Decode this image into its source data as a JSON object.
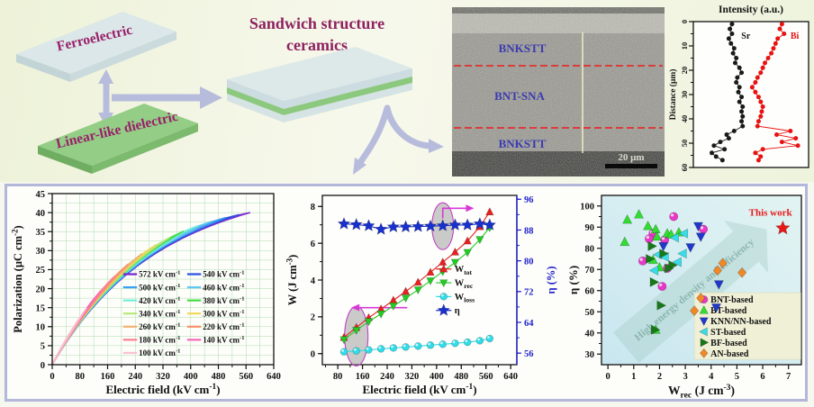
{
  "schematic": {
    "plate_top_label": "Ferroelectric",
    "plate_bottom_label": "Linear-like dielectric",
    "title_line1": "Sandwich structure",
    "title_line2": "ceramics",
    "text_color": "#99206a",
    "plate_top_color": "#dbe7e8",
    "plate_bottom_color": "#94cd86",
    "arrow_color": "#b7bcdc"
  },
  "sem": {
    "layers": [
      "BNKSTT",
      "BNT-SNA",
      "BNKSTT"
    ],
    "scale_bar_label": "20 μm",
    "label_color": "#3b3bb0",
    "boundary_color": "#e03030"
  },
  "chart_data": [
    {
      "id": "eds-line-scan",
      "type": "line",
      "title": "Intensity (a.u.)",
      "ylabel": "Distance (μm)",
      "ylim": [
        0,
        60
      ],
      "yticks": [
        0,
        10,
        20,
        30,
        40,
        50,
        60
      ],
      "legend_position": "inside-top",
      "series": [
        {
          "name": "Sr",
          "color": "#1a1a1a",
          "label_pos": [
            0.46,
            7
          ],
          "points": [
            [
              0.33,
              1
            ],
            [
              0.31,
              3
            ],
            [
              0.33,
              5
            ],
            [
              0.3,
              7
            ],
            [
              0.32,
              9
            ],
            [
              0.35,
              11
            ],
            [
              0.34,
              13
            ],
            [
              0.37,
              15
            ],
            [
              0.36,
              17
            ],
            [
              0.4,
              19
            ],
            [
              0.42,
              21
            ],
            [
              0.38,
              23
            ],
            [
              0.37,
              25
            ],
            [
              0.4,
              27
            ],
            [
              0.39,
              29
            ],
            [
              0.42,
              31
            ],
            [
              0.4,
              33
            ],
            [
              0.43,
              35
            ],
            [
              0.42,
              37
            ],
            [
              0.43,
              39
            ],
            [
              0.42,
              41
            ],
            [
              0.43,
              43
            ],
            [
              0.35,
              45
            ],
            [
              0.28,
              46.5
            ],
            [
              0.3,
              48
            ],
            [
              0.22,
              49.5
            ],
            [
              0.16,
              51
            ],
            [
              0.26,
              52.5
            ],
            [
              0.14,
              54
            ],
            [
              0.18,
              55.5
            ],
            [
              0.24,
              57
            ]
          ]
        },
        {
          "name": "Bi",
          "color": "#e81212",
          "label_pos": [
            0.92,
            7
          ],
          "points": [
            [
              0.8,
              1
            ],
            [
              0.78,
              3
            ],
            [
              0.82,
              5
            ],
            [
              0.76,
              7
            ],
            [
              0.74,
              9
            ],
            [
              0.72,
              11
            ],
            [
              0.7,
              13
            ],
            [
              0.67,
              15
            ],
            [
              0.64,
              17
            ],
            [
              0.62,
              19
            ],
            [
              0.6,
              21
            ],
            [
              0.57,
              23
            ],
            [
              0.55,
              25
            ],
            [
              0.52,
              27
            ],
            [
              0.55,
              29
            ],
            [
              0.58,
              31
            ],
            [
              0.6,
              33
            ],
            [
              0.62,
              35
            ],
            [
              0.61,
              37
            ],
            [
              0.6,
              39
            ],
            [
              0.58,
              41
            ],
            [
              0.57,
              43
            ],
            [
              0.88,
              45
            ],
            [
              0.75,
              46.5
            ],
            [
              0.93,
              48
            ],
            [
              0.8,
              49.5
            ],
            [
              0.95,
              51
            ],
            [
              0.62,
              52.5
            ],
            [
              0.55,
              54
            ],
            [
              0.6,
              55.5
            ],
            [
              0.58,
              57
            ]
          ]
        }
      ]
    },
    {
      "id": "pe-loops",
      "type": "line",
      "xlabel": "Electric field (kV cm⁻¹)",
      "ylabel": "Polarization (μC cm⁻²)",
      "xlim": [
        0,
        640
      ],
      "ylim": [
        0,
        45
      ],
      "xtick_step": 80,
      "ytick_step": 5,
      "grid": true,
      "grid_color": "#9fd6a0",
      "model": {
        "psat": 45,
        "e0": 260,
        "pmax_at_572": 39.9
      },
      "envelope": [
        [
          0,
          0
        ],
        [
          80,
          11.8
        ],
        [
          160,
          20.8
        ],
        [
          240,
          27.3
        ],
        [
          320,
          32.1
        ],
        [
          400,
          35.6
        ],
        [
          480,
          38.1
        ],
        [
          560,
          39.8
        ],
        [
          572,
          39.9
        ]
      ],
      "fields": [
        572,
        540,
        500,
        460,
        420,
        380,
        340,
        300,
        260,
        220,
        180,
        140,
        100
      ],
      "colors": [
        "#7722cc",
        "#2850e0",
        "#38a0f0",
        "#60c8f0",
        "#70eed8",
        "#44dd44",
        "#b8e878",
        "#f0d858",
        "#f4b070",
        "#f89068",
        "#fa8090",
        "#f868b8",
        "#fbc0d0"
      ],
      "legend_labels": [
        "572 kV cm⁻¹",
        "540 kV cm⁻¹",
        "500 kV cm⁻¹",
        "460 kV cm⁻¹",
        "420 kV cm⁻¹",
        "380 kV cm⁻¹",
        "340 kV cm⁻¹",
        "300 kV cm⁻¹",
        "260 kV cm⁻¹",
        "220 kV cm⁻¹",
        "180 kV cm⁻¹",
        "140 kV cm⁻¹",
        "100 kV cm⁻¹"
      ]
    },
    {
      "id": "energy-storage-vs-field",
      "type": "line-scatter",
      "xlabel": "Electric field (kV cm⁻¹)",
      "ylabel_left": "W (J cm⁻³)",
      "ylabel_right": "η (%)",
      "xlim": [
        30,
        660
      ],
      "xticks": [
        80,
        160,
        240,
        320,
        400,
        480,
        560,
        640
      ],
      "ylim_left": [
        -0.6,
        8.6
      ],
      "yticks_left": [
        0,
        2,
        4,
        6,
        8
      ],
      "ylim_right": [
        53,
        97
      ],
      "yticks_right": [
        56,
        64,
        72,
        80,
        88,
        96
      ],
      "right_axis_color": "#2222cc",
      "x": [
        100,
        140,
        180,
        220,
        260,
        300,
        340,
        380,
        420,
        460,
        500,
        540,
        572
      ],
      "series": [
        {
          "name": "W_tot",
          "marker": "triangle-up",
          "color": "#e82020",
          "axis": "left",
          "values": [
            0.88,
            1.42,
            1.95,
            2.42,
            2.9,
            3.38,
            3.88,
            4.42,
            4.97,
            5.52,
            6.12,
            6.9,
            7.7
          ]
        },
        {
          "name": "W_rec",
          "marker": "triangle-down",
          "color": "#22cc22",
          "axis": "left",
          "values": [
            0.76,
            1.27,
            1.74,
            2.16,
            2.59,
            3.02,
            3.47,
            3.96,
            4.46,
            4.96,
            5.5,
            6.2,
            6.85
          ]
        },
        {
          "name": "W_loss",
          "marker": "circle",
          "color": "#30dce8",
          "axis": "left",
          "values": [
            0.1,
            0.15,
            0.2,
            0.26,
            0.31,
            0.36,
            0.41,
            0.46,
            0.51,
            0.56,
            0.62,
            0.7,
            0.82
          ]
        },
        {
          "name": "η",
          "marker": "star",
          "color": "#1830cc",
          "axis": "right",
          "values": [
            89.6,
            89.4,
            89.1,
            88.2,
            88.8,
            88.8,
            88.9,
            89.0,
            89.1,
            89.3,
            89.3,
            89.6,
            89.3
          ]
        }
      ]
    },
    {
      "id": "comparison-scatter",
      "type": "scatter",
      "xlabel": "W_rec (J cm⁻³)",
      "ylabel": "η (%)",
      "xlim": [
        -0.25,
        7.5
      ],
      "xticks": [
        0,
        1,
        2,
        3,
        4,
        5,
        6,
        7
      ],
      "ylim": [
        25,
        105
      ],
      "yticks": [
        30,
        40,
        50,
        60,
        70,
        80,
        90,
        100
      ],
      "watermark": "High energy density and efficiency",
      "series": [
        {
          "name": "BNT-based",
          "marker": "circle",
          "color": "#e838c8",
          "points": [
            [
              2.55,
              95
            ],
            [
              1.75,
              87
            ],
            [
              1.6,
              84.5
            ],
            [
              2.2,
              84
            ],
            [
              3.7,
              89
            ],
            [
              1.35,
              74
            ],
            [
              2.3,
              70.5
            ],
            [
              2.1,
              62
            ]
          ]
        },
        {
          "name": "BT-based",
          "marker": "triangle-up",
          "color": "#30dd30",
          "points": [
            [
              0.75,
              93.5
            ],
            [
              1.2,
              96
            ],
            [
              1.55,
              90.5
            ],
            [
              1.85,
              89
            ],
            [
              2.3,
              87
            ],
            [
              2.75,
              87.5
            ],
            [
              0.65,
              83
            ],
            [
              1.9,
              85.5
            ],
            [
              2.45,
              86.5
            ],
            [
              1.75,
              74.5
            ],
            [
              2.0,
              71
            ],
            [
              1.85,
              41.5
            ]
          ]
        },
        {
          "name": "KNN/NN-based",
          "marker": "triangle-down",
          "color": "#2038cc",
          "points": [
            [
              3.5,
              90.5
            ],
            [
              3.6,
              85.5
            ],
            [
              2.15,
              81
            ],
            [
              3.2,
              80.5
            ],
            [
              4.3,
              63
            ],
            [
              4.2,
              52
            ]
          ]
        },
        {
          "name": "ST-based",
          "marker": "triangle-left",
          "color": "#38dce8",
          "points": [
            [
              2.6,
              85
            ],
            [
              2.95,
              87
            ],
            [
              1.95,
              77
            ],
            [
              2.2,
              76
            ],
            [
              2.9,
              77.5
            ],
            [
              2.7,
              73.5
            ],
            [
              1.8,
              69.5
            ]
          ]
        },
        {
          "name": "BF-based",
          "marker": "triangle-right",
          "color": "#187818",
          "points": [
            [
              1.7,
              81
            ],
            [
              2.15,
              77.5
            ],
            [
              1.62,
              75
            ],
            [
              2.5,
              72
            ],
            [
              2.35,
              70.5
            ],
            [
              1.78,
              64
            ],
            [
              2.05,
              53
            ],
            [
              1.82,
              41.5
            ]
          ]
        },
        {
          "name": "AN-based",
          "marker": "diamond",
          "color": "#f08828",
          "points": [
            [
              4.45,
              73
            ],
            [
              4.25,
              69.5
            ],
            [
              5.2,
              68.5
            ],
            [
              3.6,
              56.5
            ],
            [
              3.35,
              50.5
            ]
          ]
        },
        {
          "name": "This work",
          "marker": "star",
          "color": "#e81818",
          "label_pos": [
            6.3,
            95.5
          ],
          "points": [
            [
              6.78,
              89.5
            ]
          ]
        }
      ]
    }
  ]
}
